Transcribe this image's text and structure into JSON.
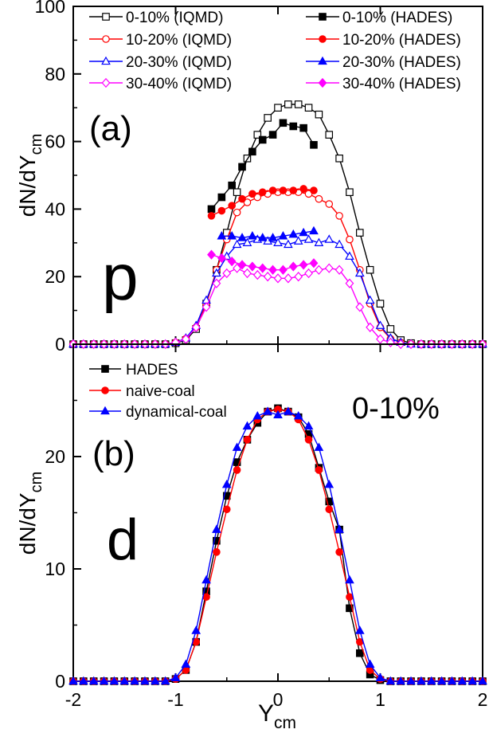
{
  "chart_data": [
    {
      "type": "line",
      "panel": "(a)",
      "particle": "p",
      "ylabel": "dN/dY",
      "ylabel_sub": "cm",
      "xlim": [
        -2,
        2
      ],
      "ylim": [
        0,
        100
      ],
      "xticks": [
        -2,
        -1,
        0,
        1,
        2
      ],
      "yticks": [
        0,
        20,
        40,
        60,
        80,
        100
      ],
      "legend_placement": "top",
      "series": [
        {
          "name": "0-10% (IQMD)",
          "color": "#000000",
          "marker": "square",
          "filled": false,
          "x": [
            -2.0,
            -1.9,
            -1.8,
            -1.7,
            -1.6,
            -1.5,
            -1.4,
            -1.3,
            -1.2,
            -1.1,
            -1.0,
            -0.9,
            -0.8,
            -0.7,
            -0.6,
            -0.5,
            -0.4,
            -0.3,
            -0.2,
            -0.1,
            0.0,
            0.1,
            0.2,
            0.3,
            0.4,
            0.5,
            0.6,
            0.7,
            0.8,
            0.9,
            1.0,
            1.1,
            1.2,
            1.3,
            1.4,
            1.5,
            1.6,
            1.7,
            1.8,
            1.9,
            2.0
          ],
          "y": [
            0,
            0,
            0,
            0,
            0,
            0,
            0,
            0,
            0,
            0,
            0.3,
            1.2,
            4.5,
            12,
            22,
            33,
            45,
            55,
            62,
            67,
            70,
            71,
            71,
            70,
            68,
            62,
            55,
            45,
            33,
            22,
            12,
            4.5,
            1.2,
            0.3,
            0,
            0,
            0,
            0,
            0,
            0,
            0
          ]
        },
        {
          "name": "0-10% (HADES)",
          "color": "#000000",
          "marker": "square",
          "filled": true,
          "x": [
            -0.65,
            -0.55,
            -0.45,
            -0.35,
            -0.25,
            -0.15,
            -0.05,
            0.05,
            0.15,
            0.25,
            0.35
          ],
          "y": [
            40,
            43.5,
            47,
            52.5,
            57,
            60.5,
            62,
            65.5,
            64.5,
            64,
            59
          ]
        },
        {
          "name": "10-20% (IQMD)",
          "color": "#ff0000",
          "marker": "circle",
          "filled": false,
          "x": [
            -2.0,
            -1.9,
            -1.8,
            -1.7,
            -1.6,
            -1.5,
            -1.4,
            -1.3,
            -1.2,
            -1.1,
            -1.0,
            -0.9,
            -0.8,
            -0.7,
            -0.6,
            -0.5,
            -0.4,
            -0.3,
            -0.2,
            -0.1,
            0.0,
            0.1,
            0.2,
            0.3,
            0.4,
            0.5,
            0.6,
            0.7,
            0.8,
            0.9,
            1.0,
            1.1,
            1.2,
            1.3,
            1.4,
            1.5,
            1.6,
            1.7,
            1.8,
            1.9,
            2.0
          ],
          "y": [
            0,
            0,
            0,
            0,
            0,
            0,
            0,
            0,
            0,
            0,
            0.5,
            1.6,
            5,
            12,
            22,
            31,
            39,
            42,
            43.5,
            44.5,
            45,
            45,
            45,
            44.5,
            43,
            41.5,
            38,
            31,
            22,
            12,
            5,
            1.6,
            0.5,
            0,
            0,
            0,
            0,
            0,
            0,
            0,
            0
          ]
        },
        {
          "name": "10-20% (HADES)",
          "color": "#ff0000",
          "marker": "circle",
          "filled": true,
          "x": [
            -0.65,
            -0.55,
            -0.45,
            -0.35,
            -0.25,
            -0.15,
            -0.05,
            0.05,
            0.15,
            0.25,
            0.35
          ],
          "y": [
            38,
            39.5,
            41,
            43,
            44.5,
            45,
            45.5,
            45.5,
            45.5,
            46,
            45.5
          ]
        },
        {
          "name": "20-30% (IQMD)",
          "color": "#0000ff",
          "marker": "triangle",
          "filled": false,
          "x": [
            -2.0,
            -1.9,
            -1.8,
            -1.7,
            -1.6,
            -1.5,
            -1.4,
            -1.3,
            -1.2,
            -1.1,
            -1.0,
            -0.9,
            -0.8,
            -0.7,
            -0.6,
            -0.5,
            -0.4,
            -0.3,
            -0.2,
            -0.1,
            0.0,
            0.1,
            0.2,
            0.3,
            0.4,
            0.5,
            0.6,
            0.7,
            0.8,
            0.9,
            1.0,
            1.1,
            1.2,
            1.3,
            1.4,
            1.5,
            1.6,
            1.7,
            1.8,
            1.9,
            2.0
          ],
          "y": [
            0,
            0,
            0,
            0,
            0,
            0,
            0,
            0,
            0,
            0,
            0.5,
            1.8,
            5.5,
            13,
            21,
            26,
            29.5,
            30,
            31,
            30.5,
            30,
            29.5,
            30.5,
            31,
            30,
            31,
            29.5,
            26,
            21,
            13,
            5.5,
            1.8,
            0.5,
            0,
            0,
            0,
            0,
            0,
            0,
            0,
            0
          ]
        },
        {
          "name": "20-30% (HADES)",
          "color": "#0000ff",
          "marker": "triangle",
          "filled": true,
          "x": [
            -0.55,
            -0.45,
            -0.35,
            -0.25,
            -0.15,
            -0.05,
            0.05,
            0.15,
            0.25,
            0.35
          ],
          "y": [
            32,
            32,
            31.5,
            32,
            31.5,
            31.5,
            32,
            32.5,
            33,
            33.5
          ]
        },
        {
          "name": "30-40% (IQMD)",
          "color": "#ff00ff",
          "marker": "diamond",
          "filled": false,
          "x": [
            -2.0,
            -1.9,
            -1.8,
            -1.7,
            -1.6,
            -1.5,
            -1.4,
            -1.3,
            -1.2,
            -1.1,
            -1.0,
            -0.9,
            -0.8,
            -0.7,
            -0.6,
            -0.5,
            -0.4,
            -0.3,
            -0.2,
            -0.1,
            0.0,
            0.1,
            0.2,
            0.3,
            0.4,
            0.5,
            0.6,
            0.7,
            0.8,
            0.9,
            1.0,
            1.1,
            1.2,
            1.3,
            1.4,
            1.5,
            1.6,
            1.7,
            1.8,
            1.9,
            2.0
          ],
          "y": [
            0,
            0,
            0,
            0,
            0,
            0,
            0,
            0,
            0,
            0,
            0.5,
            1.5,
            5,
            11,
            18,
            21,
            22.5,
            21,
            20.5,
            20,
            19.5,
            19.5,
            20,
            21,
            22,
            22.5,
            22,
            18,
            11,
            5,
            1.5,
            0.5,
            0,
            0,
            0,
            0,
            0,
            0,
            0,
            0,
            0
          ]
        },
        {
          "name": "30-40% (HADES)",
          "color": "#ff00ff",
          "marker": "diamond",
          "filled": true,
          "x": [
            -0.65,
            -0.55,
            -0.45,
            -0.35,
            -0.25,
            -0.15,
            -0.05,
            0.05,
            0.15,
            0.25,
            0.35
          ],
          "y": [
            26.5,
            25.5,
            24.5,
            23.5,
            23,
            22.5,
            22,
            22,
            23,
            23.5,
            24
          ]
        }
      ]
    },
    {
      "type": "line",
      "panel": "(b)",
      "particle": "d",
      "centrality": "0-10%",
      "xlabel": "Y",
      "xlabel_sub": "cm",
      "ylabel": "dN/dY",
      "ylabel_sub": "cm",
      "xlim": [
        -2,
        2
      ],
      "ylim": [
        0,
        30
      ],
      "xticks": [
        -2,
        -1,
        0,
        1,
        2
      ],
      "yticks": [
        0,
        10,
        20
      ],
      "legend_placement": "top-left",
      "series": [
        {
          "name": "HADES",
          "color": "#000000",
          "marker": "square",
          "filled": true,
          "x": [
            -2.0,
            -1.9,
            -1.8,
            -1.7,
            -1.6,
            -1.5,
            -1.4,
            -1.3,
            -1.2,
            -1.1,
            -1.0,
            -0.9,
            -0.8,
            -0.7,
            -0.6,
            -0.5,
            -0.4,
            -0.3,
            -0.2,
            -0.1,
            0.0,
            0.1,
            0.2,
            0.3,
            0.4,
            0.5,
            0.6,
            0.7,
            0.8,
            0.9,
            1.0,
            1.1,
            1.2,
            1.3,
            1.4,
            1.5,
            1.6,
            1.7,
            1.8,
            1.9,
            2.0
          ],
          "y": [
            0,
            0,
            0,
            0,
            0,
            0,
            0,
            0,
            0,
            0,
            0.2,
            1.0,
            3.5,
            8.0,
            12.5,
            16.5,
            19.5,
            21.5,
            23.0,
            24.0,
            24.3,
            24.0,
            23.5,
            22.0,
            19.0,
            16.0,
            13.5,
            6.5,
            2.5,
            0.6,
            0.1,
            0,
            0,
            0,
            0,
            0,
            0,
            0,
            0,
            0,
            0
          ]
        },
        {
          "name": "naive-coal",
          "color": "#ff0000",
          "marker": "circle",
          "filled": true,
          "x": [
            -2.0,
            -1.9,
            -1.8,
            -1.7,
            -1.6,
            -1.5,
            -1.4,
            -1.3,
            -1.2,
            -1.1,
            -1.0,
            -0.9,
            -0.8,
            -0.7,
            -0.6,
            -0.5,
            -0.4,
            -0.3,
            -0.2,
            -0.1,
            0.0,
            0.1,
            0.2,
            0.3,
            0.4,
            0.5,
            0.6,
            0.7,
            0.8,
            0.9,
            1.0,
            1.1,
            1.2,
            1.3,
            1.4,
            1.5,
            1.6,
            1.7,
            1.8,
            1.9,
            2.0
          ],
          "y": [
            0,
            0,
            0,
            0,
            0,
            0,
            0,
            0,
            0,
            0,
            0.2,
            1.0,
            3.5,
            7.5,
            11.5,
            15.3,
            18.8,
            21.5,
            23.3,
            24.0,
            24.2,
            24.0,
            23.3,
            21.5,
            18.8,
            15.3,
            11.5,
            7.5,
            3.5,
            1.0,
            0.2,
            0,
            0,
            0,
            0,
            0,
            0,
            0,
            0,
            0,
            0
          ]
        },
        {
          "name": "dynamical-coal",
          "color": "#0000ff",
          "marker": "triangle",
          "filled": true,
          "x": [
            -2.0,
            -1.9,
            -1.8,
            -1.7,
            -1.6,
            -1.5,
            -1.4,
            -1.3,
            -1.2,
            -1.1,
            -1.0,
            -0.9,
            -0.8,
            -0.7,
            -0.6,
            -0.5,
            -0.4,
            -0.3,
            -0.2,
            -0.1,
            0.0,
            0.1,
            0.2,
            0.3,
            0.4,
            0.5,
            0.6,
            0.7,
            0.8,
            0.9,
            1.0,
            1.1,
            1.2,
            1.3,
            1.4,
            1.5,
            1.6,
            1.7,
            1.8,
            1.9,
            2.0
          ],
          "y": [
            0,
            0,
            0,
            0,
            0,
            0,
            0,
            0,
            0,
            0,
            0.3,
            1.5,
            4.5,
            9.0,
            13.5,
            17.5,
            20.8,
            22.7,
            23.6,
            24.0,
            23.7,
            24.0,
            23.6,
            22.7,
            20.8,
            17.5,
            13.5,
            9.0,
            4.5,
            1.5,
            0.3,
            0,
            0,
            0,
            0,
            0,
            0,
            0,
            0,
            0,
            0
          ]
        }
      ]
    }
  ]
}
